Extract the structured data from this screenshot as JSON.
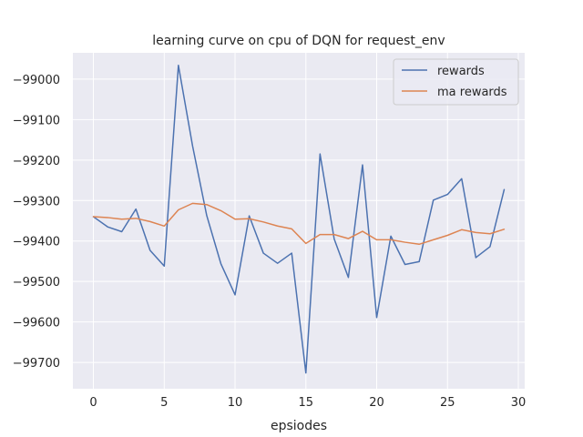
{
  "chart_data": {
    "type": "line",
    "title": "learning curve on cpu of DQN for request_env",
    "xlabel": "epsiodes",
    "ylabel": "",
    "xlim": [
      -1.45,
      30.45
    ],
    "ylim": [
      -99765,
      -98935
    ],
    "xticks": [
      0,
      5,
      10,
      15,
      20,
      25,
      30
    ],
    "yticks": [
      -99700,
      -99600,
      -99500,
      -99400,
      -99300,
      -99200,
      -99100,
      -99000
    ],
    "grid": true,
    "legend_position": "top-right",
    "x": [
      0,
      1,
      2,
      3,
      4,
      5,
      6,
      7,
      8,
      9,
      10,
      11,
      12,
      13,
      14,
      15,
      16,
      17,
      18,
      19,
      20,
      21,
      22,
      23,
      24,
      25,
      26,
      27,
      28,
      29
    ],
    "series": [
      {
        "name": "rewards",
        "color": "#4c72b0",
        "values": [
          -99340,
          -99365,
          -99377,
          -99321,
          -99423,
          -99462,
          -98966,
          -99165,
          -99337,
          -99456,
          -99533,
          -99338,
          -99430,
          -99455,
          -99430,
          -99726,
          -99185,
          -99395,
          -99490,
          -99212,
          -99589,
          -99388,
          -99458,
          -99451,
          -99299,
          -99285,
          -99246,
          -99441,
          -99414,
          -99273
        ]
      },
      {
        "name": "ma rewards",
        "color": "#dd8452",
        "values": [
          -99340,
          -99342,
          -99346,
          -99344,
          -99352,
          -99363,
          -99323,
          -99307,
          -99310,
          -99325,
          -99346,
          -99345,
          -99353,
          -99363,
          -99370,
          -99406,
          -99384,
          -99384,
          -99394,
          -99376,
          -99397,
          -99397,
          -99403,
          -99408,
          -99397,
          -99386,
          -99372,
          -99379,
          -99382,
          -99371
        ]
      }
    ]
  }
}
